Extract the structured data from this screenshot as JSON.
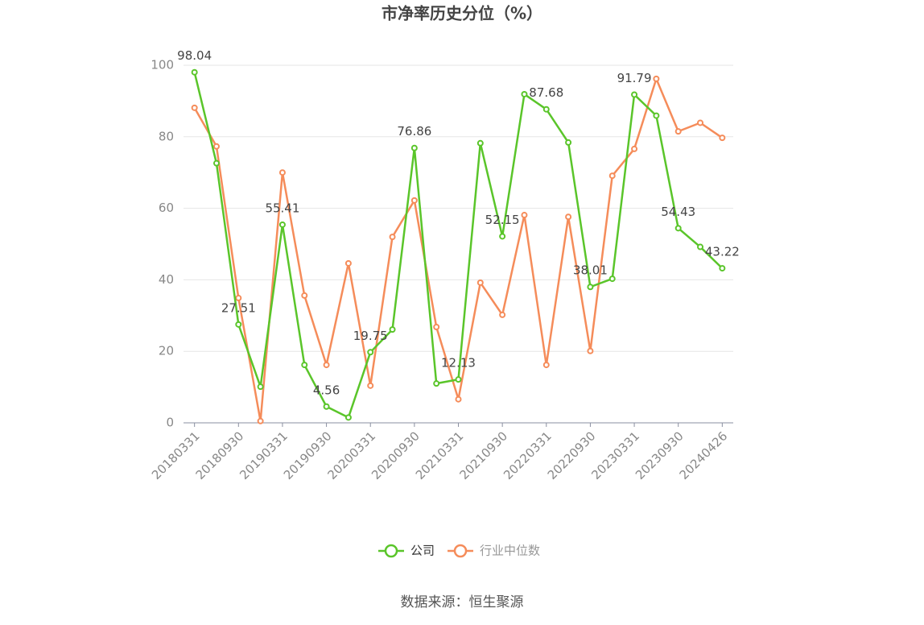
{
  "chart_data": {
    "type": "line",
    "title": "市净率历史分位（%）",
    "source": "数据来源：恒生聚源",
    "categories": [
      "20180331",
      null,
      "20180930",
      null,
      "20190331",
      null,
      "20190930",
      null,
      "20200331",
      null,
      "20200930",
      null,
      "20210331",
      null,
      "20210930",
      null,
      "20220331",
      null,
      "20220930",
      null,
      "20230331",
      null,
      "20230930",
      null,
      "20240426"
    ],
    "series": [
      {
        "name": "公司",
        "color": "#5ac52a",
        "values": [
          98.04,
          72.6,
          27.51,
          10.1,
          55.41,
          16.2,
          4.56,
          1.5,
          19.75,
          26.1,
          76.86,
          11,
          12.13,
          78.2,
          52.15,
          91.9,
          87.68,
          78.4,
          38.01,
          40.3,
          91.79,
          85.9,
          54.43,
          49.2,
          43.22
        ],
        "value_labels": [
          "98.04",
          null,
          "27.51",
          null,
          "55.41",
          null,
          "4.56",
          null,
          "19.75",
          null,
          "76.86",
          null,
          "12.13",
          null,
          "52.15",
          null,
          "87.68",
          null,
          "38.01",
          null,
          "91.79",
          null,
          "54.43",
          null,
          "43.22"
        ]
      },
      {
        "name": "行业中位数",
        "color": "#f58c5a",
        "values": [
          88.1,
          77.3,
          34.9,
          0.5,
          70,
          35.6,
          16.2,
          44.6,
          10.4,
          52,
          62.2,
          26.8,
          6.6,
          39.2,
          30.2,
          58.1,
          16.2,
          57.6,
          20.1,
          69.1,
          76.6,
          96.2,
          81.5,
          83.9,
          79.7
        ]
      }
    ],
    "ylim": [
      0,
      100
    ],
    "yticks": [
      0,
      20,
      40,
      60,
      80,
      100
    ],
    "grid": true
  }
}
